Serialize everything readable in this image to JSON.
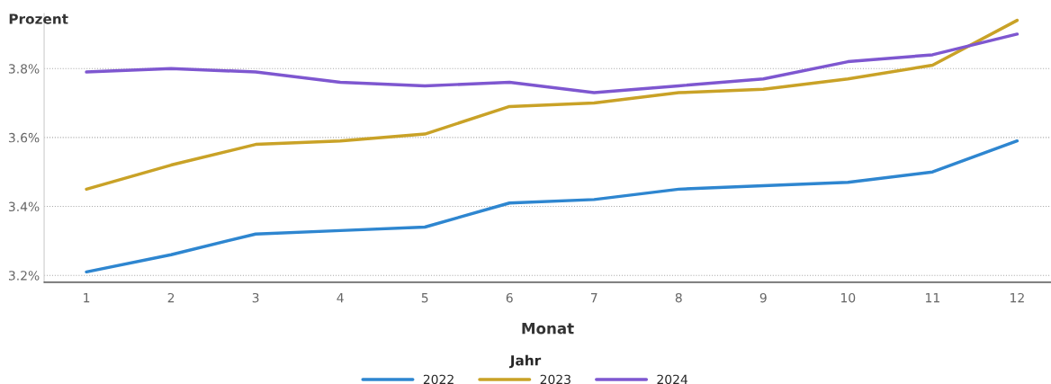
{
  "chart_data": {
    "type": "line",
    "ylabel": "Prozent",
    "xlabel": "Monat",
    "legend_title": "Jahr",
    "legend": "bottom",
    "grid": "y",
    "marker": "none",
    "line_style": "solid",
    "x": [
      1,
      2,
      3,
      4,
      5,
      6,
      7,
      8,
      9,
      10,
      11,
      12
    ],
    "xlim": [
      0.5,
      12.4
    ],
    "xticks": [
      1,
      2,
      3,
      4,
      5,
      6,
      7,
      8,
      9,
      10,
      11,
      12
    ],
    "ylim": [
      3.18,
      3.96
    ],
    "yticks": [
      {
        "value": 3.2,
        "label": "3.2%"
      },
      {
        "value": 3.4,
        "label": "3.4%"
      },
      {
        "value": 3.6,
        "label": "3.6%"
      },
      {
        "value": 3.8,
        "label": "3.8%"
      }
    ],
    "series": [
      {
        "name": "2022",
        "color": "#2e86d0",
        "values": [
          3.21,
          3.26,
          3.32,
          3.33,
          3.34,
          3.41,
          3.42,
          3.45,
          3.46,
          3.47,
          3.5,
          3.59
        ]
      },
      {
        "name": "2023",
        "color": "#c9a227",
        "values": [
          3.45,
          3.52,
          3.58,
          3.59,
          3.61,
          3.69,
          3.7,
          3.73,
          3.74,
          3.77,
          3.81,
          3.94
        ]
      },
      {
        "name": "2024",
        "color": "#7e57d0",
        "values": [
          3.79,
          3.8,
          3.79,
          3.76,
          3.75,
          3.76,
          3.73,
          3.75,
          3.77,
          3.82,
          3.84,
          3.9
        ]
      }
    ]
  }
}
